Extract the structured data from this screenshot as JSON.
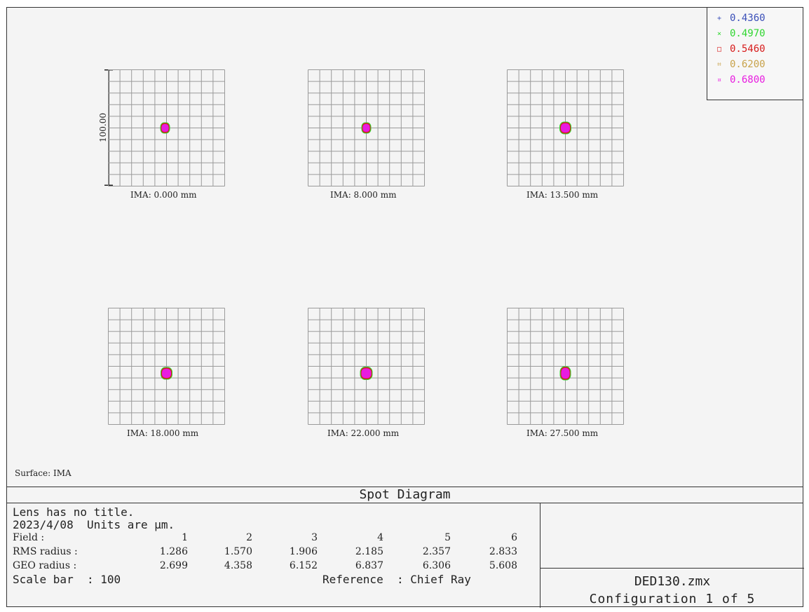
{
  "legend": [
    {
      "marker": "+",
      "wavelength": "0.4360",
      "color": "#3a4fb8"
    },
    {
      "marker": "×",
      "wavelength": "0.4970",
      "color": "#2fd62f"
    },
    {
      "marker": "□",
      "wavelength": "0.5460",
      "color": "#d71b1b"
    },
    {
      "marker": "⌗",
      "wavelength": "0.6200",
      "color": "#c8a24a"
    },
    {
      "marker": "¤",
      "wavelength": "0.6800",
      "color": "#e81ce0"
    }
  ],
  "fields": [
    {
      "label": "IMA: 0.000 mm"
    },
    {
      "label": "IMA: 8.000 mm"
    },
    {
      "label": "IMA: 13.500 mm"
    },
    {
      "label": "IMA: 18.000 mm"
    },
    {
      "label": "IMA: 22.000 mm"
    },
    {
      "label": "IMA: 27.500 mm"
    }
  ],
  "scale_bar_label": "100.00",
  "surface": "Surface: IMA",
  "title": "Spot Diagram",
  "info": {
    "lens_title": "Lens has no title.",
    "date_units": "2023/4/08  Units are µm.",
    "field_header": "Field      :",
    "rms_header": "RMS radius :",
    "geo_header": "GEO radius :",
    "field_numbers": [
      "1",
      "2",
      "3",
      "4",
      "5",
      "6"
    ],
    "rms_values": [
      "1.286",
      "1.570",
      "1.906",
      "2.185",
      "2.357",
      "2.833"
    ],
    "geo_values": [
      "2.699",
      "4.358",
      "6.152",
      "6.837",
      "6.306",
      "5.608"
    ],
    "scale_bar": "Scale bar  : 100",
    "reference": "Reference  : Chief Ray"
  },
  "file_name": "DED130.zmx",
  "configuration": "Configuration 1 of 5"
}
